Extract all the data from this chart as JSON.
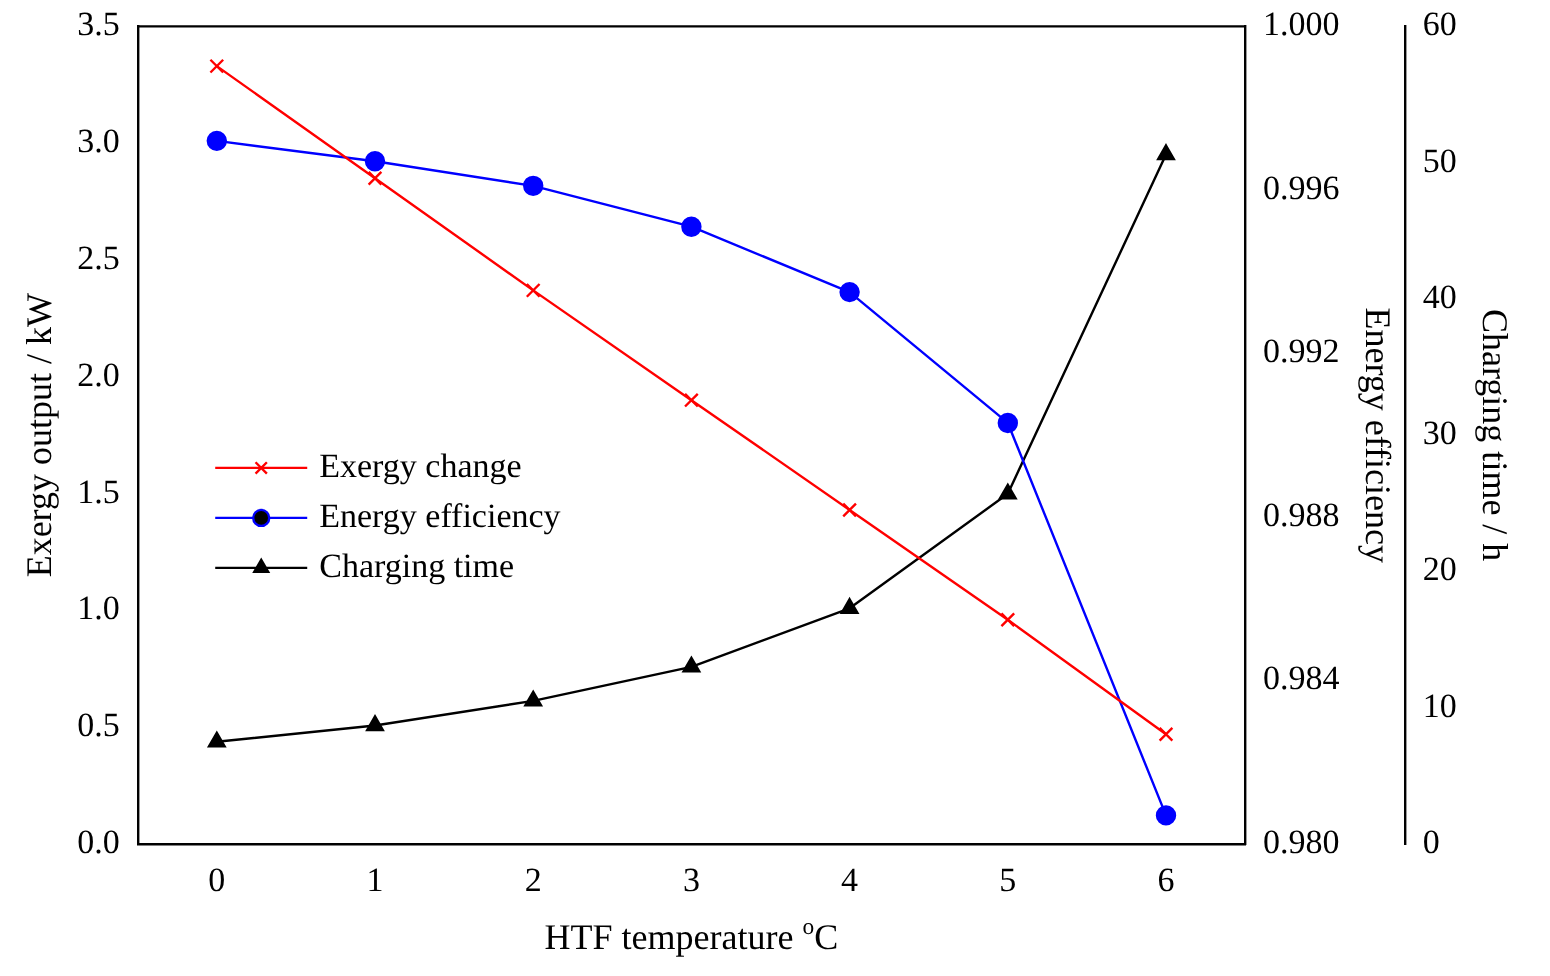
{
  "chart_data": {
    "type": "line",
    "xlabel": "HTF temperature $^{o}$C",
    "ylabel": "Exergy output / kW",
    "y2label": "Energy efficiency",
    "y3label": "Charging time / h",
    "x": [
      0,
      1,
      2,
      3,
      4,
      5,
      6
    ],
    "xlim": [
      -0.5,
      6.5
    ],
    "xticks": [
      0,
      1,
      2,
      3,
      4,
      5,
      6
    ],
    "ylim": [
      0,
      3.5
    ],
    "yticks": [
      {
        "value": 0,
        "label": "0.0"
      },
      {
        "value": 0.5,
        "label": "0.5"
      },
      {
        "value": 1,
        "label": "1.0"
      },
      {
        "value": 1.5,
        "label": "1.5"
      },
      {
        "value": 2,
        "label": "2.0"
      },
      {
        "value": 2.5,
        "label": "2.5"
      },
      {
        "value": 3,
        "label": "3.0"
      },
      {
        "value": 3.5,
        "label": "3.5"
      }
    ],
    "y2lim": [
      0.98,
      1
    ],
    "y2ticks": [
      {
        "value": 0.98,
        "label": "0.980"
      },
      {
        "value": 0.984,
        "label": "0.984"
      },
      {
        "value": 0.988,
        "label": "0.988"
      },
      {
        "value": 0.992,
        "label": "0.992"
      },
      {
        "value": 0.996,
        "label": "0.996"
      },
      {
        "value": 1,
        "label": "1.000"
      }
    ],
    "y3lim": [
      0,
      60
    ],
    "y3ticks": [
      0,
      10,
      20,
      30,
      40,
      50,
      60
    ],
    "series": [
      {
        "name": "Exergy change",
        "color": "#ff0000",
        "marker": "cross",
        "values": [
          3.33,
          2.85,
          2.37,
          1.9,
          1.43,
          0.96,
          0.47
        ]
      },
      {
        "name": "Energy efficiency",
        "color": "#0000ff",
        "marker": "circle",
        "axis": "y2",
        "values": [
          0.9972,
          0.9967,
          0.9961,
          0.9951,
          0.9935,
          0.9903,
          0.9807
        ]
      },
      {
        "name": "Charging time",
        "color": "#000000",
        "marker": "triangle",
        "axis": "y3",
        "values": [
          7.5,
          8.7,
          10.5,
          13.0,
          17.3,
          25.7,
          50.6
        ]
      }
    ],
    "grid": false,
    "legend": "left",
    "line_style": "solid"
  }
}
